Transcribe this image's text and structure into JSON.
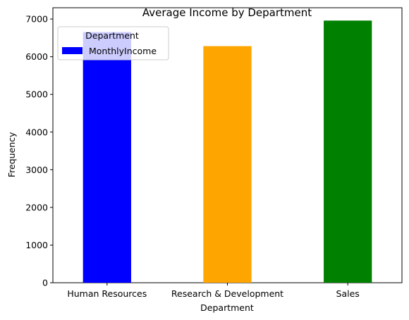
{
  "chart_data": {
    "type": "bar",
    "title": "Average Income by Department",
    "xlabel": "Department",
    "ylabel": "Frequency",
    "categories": [
      "Human Resources",
      "Research & Development",
      "Sales"
    ],
    "series": [
      {
        "name": "MonthlyIncome",
        "values": [
          6654,
          6281,
          6959
        ]
      }
    ],
    "bar_colors": [
      "#0000ff",
      "#ffa500",
      "#008000"
    ],
    "ylim": [
      0,
      7300
    ],
    "yticks": [
      "0",
      "1000",
      "2000",
      "3000",
      "4000",
      "5000",
      "6000",
      "7000"
    ],
    "legend": {
      "title": "Department",
      "placement": "top-left",
      "entries": [
        "MonthlyIncome"
      ],
      "swatch_color": "#0000ff"
    },
    "grid": false
  }
}
